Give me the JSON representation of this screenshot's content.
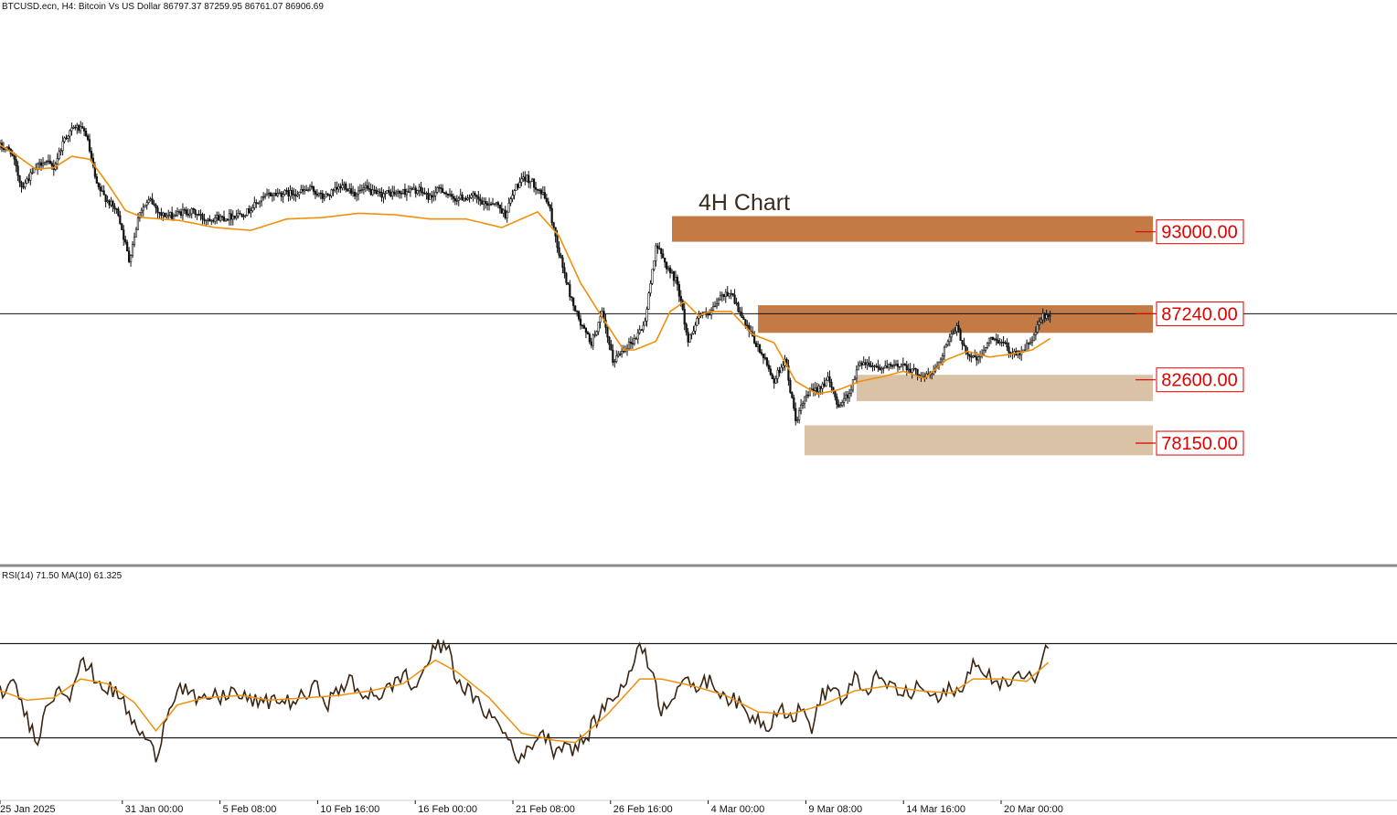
{
  "chart_data": {
    "type": "candlestick",
    "symbol_header": "BTCUSD.ecn, H4:  Bitcoin Vs US Dollar  86797.37 87259.95 86761.07 86906.69",
    "annotation": "4H Chart",
    "colors": {
      "candle": "#111111",
      "price_ma": "#f0900a",
      "resistance_zone": "#c47a45",
      "support_zone": "#d9c2a6",
      "level_label": "#e00000",
      "rsi_line": "#3a2512",
      "rsi_ma": "#f0900a"
    },
    "price_axis": {
      "min": 70000,
      "max": 108000,
      "note": "price values are approximate readings; y axis labels not shown"
    },
    "price_series": [
      [
        0,
        99000
      ],
      [
        6,
        98700
      ],
      [
        12,
        96200
      ],
      [
        18,
        97100
      ],
      [
        24,
        98000
      ],
      [
        30,
        97500
      ],
      [
        36,
        99600
      ],
      [
        42,
        100400
      ],
      [
        48,
        99900
      ],
      [
        54,
        96200
      ],
      [
        60,
        95200
      ],
      [
        66,
        94300
      ],
      [
        72,
        91000
      ],
      [
        78,
        94500
      ],
      [
        84,
        95200
      ],
      [
        90,
        94200
      ],
      [
        96,
        94100
      ],
      [
        102,
        94400
      ],
      [
        108,
        94400
      ],
      [
        114,
        93900
      ],
      [
        120,
        94000
      ],
      [
        126,
        94000
      ],
      [
        132,
        94200
      ],
      [
        138,
        94400
      ],
      [
        144,
        95100
      ],
      [
        150,
        95600
      ],
      [
        156,
        95700
      ],
      [
        162,
        95700
      ],
      [
        168,
        95800
      ],
      [
        174,
        96000
      ],
      [
        180,
        95400
      ],
      [
        186,
        95800
      ],
      [
        192,
        96300
      ],
      [
        198,
        95700
      ],
      [
        204,
        96000
      ],
      [
        210,
        95600
      ],
      [
        216,
        95700
      ],
      [
        222,
        95700
      ],
      [
        228,
        95900
      ],
      [
        234,
        95900
      ],
      [
        240,
        95400
      ],
      [
        246,
        96100
      ],
      [
        252,
        95300
      ],
      [
        258,
        95400
      ],
      [
        264,
        95500
      ],
      [
        270,
        94900
      ],
      [
        276,
        95100
      ],
      [
        282,
        94200
      ],
      [
        288,
        96200
      ],
      [
        294,
        96800
      ],
      [
        300,
        96100
      ],
      [
        306,
        95000
      ],
      [
        312,
        91500
      ],
      [
        318,
        88600
      ],
      [
        324,
        86500
      ],
      [
        330,
        85200
      ],
      [
        336,
        87200
      ],
      [
        342,
        83900
      ],
      [
        348,
        84800
      ],
      [
        354,
        85400
      ],
      [
        360,
        86700
      ],
      [
        366,
        92100
      ],
      [
        372,
        90600
      ],
      [
        378,
        89400
      ],
      [
        384,
        85300
      ],
      [
        390,
        87200
      ],
      [
        396,
        87100
      ],
      [
        402,
        88400
      ],
      [
        408,
        88800
      ],
      [
        414,
        86900
      ],
      [
        420,
        85500
      ],
      [
        426,
        84200
      ],
      [
        432,
        82500
      ],
      [
        438,
        84100
      ],
      [
        444,
        79700
      ],
      [
        450,
        81500
      ],
      [
        456,
        82000
      ],
      [
        462,
        82600
      ],
      [
        468,
        80800
      ],
      [
        474,
        81700
      ],
      [
        480,
        83900
      ],
      [
        486,
        83700
      ],
      [
        492,
        83400
      ],
      [
        498,
        83500
      ],
      [
        504,
        83700
      ],
      [
        510,
        83200
      ],
      [
        516,
        82800
      ],
      [
        522,
        83300
      ],
      [
        528,
        85100
      ],
      [
        534,
        86200
      ],
      [
        540,
        84400
      ],
      [
        546,
        84000
      ],
      [
        552,
        85400
      ],
      [
        558,
        85400
      ],
      [
        564,
        84600
      ],
      [
        570,
        84500
      ],
      [
        576,
        85400
      ],
      [
        582,
        87100
      ],
      [
        586,
        86900
      ]
    ],
    "ma_series": [
      [
        0,
        99100
      ],
      [
        10,
        98300
      ],
      [
        20,
        97400
      ],
      [
        30,
        97500
      ],
      [
        40,
        98300
      ],
      [
        50,
        98100
      ],
      [
        60,
        96400
      ],
      [
        70,
        94500
      ],
      [
        80,
        94000
      ],
      [
        100,
        93800
      ],
      [
        120,
        93300
      ],
      [
        140,
        93100
      ],
      [
        160,
        93900
      ],
      [
        180,
        94000
      ],
      [
        200,
        94300
      ],
      [
        220,
        94200
      ],
      [
        240,
        93900
      ],
      [
        260,
        93900
      ],
      [
        280,
        93300
      ],
      [
        300,
        94400
      ],
      [
        312,
        92700
      ],
      [
        324,
        89400
      ],
      [
        336,
        87000
      ],
      [
        348,
        84700
      ],
      [
        354,
        84700
      ],
      [
        366,
        85300
      ],
      [
        374,
        87400
      ],
      [
        382,
        88100
      ],
      [
        390,
        87100
      ],
      [
        396,
        87400
      ],
      [
        408,
        87400
      ],
      [
        420,
        85800
      ],
      [
        432,
        85200
      ],
      [
        444,
        82500
      ],
      [
        456,
        81600
      ],
      [
        468,
        81900
      ],
      [
        480,
        82500
      ],
      [
        492,
        82800
      ],
      [
        504,
        83200
      ],
      [
        516,
        82700
      ],
      [
        528,
        84000
      ],
      [
        540,
        84600
      ],
      [
        552,
        84200
      ],
      [
        564,
        84400
      ],
      [
        576,
        84700
      ],
      [
        586,
        85500
      ]
    ],
    "candle_count": 587,
    "levels": [
      {
        "label": "93000.00",
        "value": 93000,
        "zone": [
          92300,
          94100
        ],
        "kind": "resistance",
        "start_index": 375
      },
      {
        "label": "87240.00",
        "value": 87240,
        "zone": [
          85900,
          87840
        ],
        "kind": "resistance",
        "start_index": 423
      },
      {
        "label": "82600.00",
        "value": 82600,
        "zone": [
          81100,
          82950
        ],
        "kind": "support",
        "start_index": 478
      },
      {
        "label": "78150.00",
        "value": 78150,
        "zone": [
          77300,
          79400
        ],
        "kind": "support",
        "start_index": 449
      }
    ],
    "current_price_line": 87240,
    "x_ticks": [
      {
        "label": "25 Jan 2025",
        "index": 0
      },
      {
        "label": "31 Jan 00:00",
        "index": 30
      },
      {
        "label": "5 Feb 08:00",
        "index": 62
      },
      {
        "label": "10 Feb 16:00",
        "index": 94
      },
      {
        "label": "16 Feb 00:00",
        "index": 126
      },
      {
        "label": "21 Feb 08:00",
        "index": 158
      },
      {
        "label": "26 Feb 16:00",
        "index": 190
      },
      {
        "label": "4 Mar 00:00",
        "index": 222
      },
      {
        "label": "9 Mar 08:00",
        "index": 254
      },
      {
        "label": "14 Mar 16:00",
        "index": 286
      },
      {
        "label": "20 Mar 00:00",
        "index": 318
      }
    ],
    "rsi": {
      "header": "RSI(14) 71.50 MA(10) 61.325",
      "period": 14,
      "value": 71.5,
      "ma_period": 10,
      "ma_value": 61.325,
      "levels": [
        70,
        30
      ],
      "range": [
        5,
        95
      ],
      "series": [
        [
          0,
          50
        ],
        [
          6,
          52
        ],
        [
          10,
          38
        ],
        [
          14,
          30
        ],
        [
          18,
          45
        ],
        [
          22,
          52
        ],
        [
          26,
          49
        ],
        [
          30,
          62
        ],
        [
          34,
          58
        ],
        [
          38,
          52
        ],
        [
          42,
          50
        ],
        [
          46,
          45
        ],
        [
          50,
          35
        ],
        [
          54,
          30
        ],
        [
          58,
          22
        ],
        [
          62,
          40
        ],
        [
          66,
          52
        ],
        [
          70,
          50
        ],
        [
          74,
          44
        ],
        [
          78,
          48
        ],
        [
          82,
          47
        ],
        [
          86,
          50
        ],
        [
          90,
          47
        ],
        [
          94,
          46
        ],
        [
          98,
          44
        ],
        [
          102,
          47
        ],
        [
          106,
          45
        ],
        [
          110,
          46
        ],
        [
          114,
          48
        ],
        [
          118,
          52
        ],
        [
          122,
          45
        ],
        [
          126,
          50
        ],
        [
          130,
          55
        ],
        [
          134,
          47
        ],
        [
          138,
          50
        ],
        [
          142,
          48
        ],
        [
          146,
          52
        ],
        [
          150,
          58
        ],
        [
          154,
          50
        ],
        [
          158,
          60
        ],
        [
          162,
          68
        ],
        [
          166,
          70
        ],
        [
          170,
          55
        ],
        [
          174,
          50
        ],
        [
          178,
          44
        ],
        [
          182,
          40
        ],
        [
          186,
          35
        ],
        [
          190,
          28
        ],
        [
          194,
          20
        ],
        [
          198,
          28
        ],
        [
          202,
          33
        ],
        [
          206,
          25
        ],
        [
          210,
          28
        ],
        [
          214,
          25
        ],
        [
          218,
          30
        ],
        [
          222,
          38
        ],
        [
          226,
          45
        ],
        [
          230,
          50
        ],
        [
          234,
          55
        ],
        [
          238,
          72
        ],
        [
          242,
          60
        ],
        [
          246,
          42
        ],
        [
          250,
          48
        ],
        [
          254,
          55
        ],
        [
          258,
          50
        ],
        [
          262,
          55
        ],
        [
          266,
          52
        ],
        [
          270,
          48
        ],
        [
          274,
          45
        ],
        [
          278,
          40
        ],
        [
          282,
          38
        ],
        [
          286,
          35
        ],
        [
          290,
          45
        ],
        [
          294,
          38
        ],
        [
          298,
          42
        ],
        [
          302,
          35
        ],
        [
          306,
          48
        ],
        [
          310,
          52
        ],
        [
          314,
          45
        ],
        [
          318,
          55
        ],
        [
          322,
          50
        ],
        [
          326,
          55
        ],
        [
          330,
          53
        ],
        [
          334,
          50
        ],
        [
          338,
          48
        ],
        [
          342,
          52
        ],
        [
          346,
          48
        ],
        [
          350,
          46
        ],
        [
          354,
          52
        ],
        [
          358,
          48
        ],
        [
          362,
          65
        ],
        [
          366,
          55
        ],
        [
          370,
          56
        ],
        [
          374,
          52
        ],
        [
          378,
          57
        ],
        [
          382,
          54
        ],
        [
          386,
          58
        ],
        [
          390,
          71
        ]
      ],
      "ma_series": [
        [
          0,
          50
        ],
        [
          10,
          46
        ],
        [
          20,
          47
        ],
        [
          30,
          55
        ],
        [
          40,
          53
        ],
        [
          50,
          45
        ],
        [
          58,
          33
        ],
        [
          66,
          44
        ],
        [
          76,
          47
        ],
        [
          90,
          48
        ],
        [
          100,
          46
        ],
        [
          114,
          47
        ],
        [
          126,
          48
        ],
        [
          138,
          50
        ],
        [
          150,
          53
        ],
        [
          162,
          63
        ],
        [
          170,
          58
        ],
        [
          182,
          47
        ],
        [
          194,
          32
        ],
        [
          206,
          29
        ],
        [
          214,
          28
        ],
        [
          226,
          40
        ],
        [
          238,
          55
        ],
        [
          246,
          55
        ],
        [
          258,
          52
        ],
        [
          270,
          48
        ],
        [
          282,
          41
        ],
        [
          294,
          40
        ],
        [
          306,
          44
        ],
        [
          318,
          50
        ],
        [
          330,
          52
        ],
        [
          342,
          50
        ],
        [
          354,
          49
        ],
        [
          362,
          55
        ],
        [
          374,
          55
        ],
        [
          382,
          54
        ],
        [
          390,
          62
        ]
      ]
    }
  }
}
